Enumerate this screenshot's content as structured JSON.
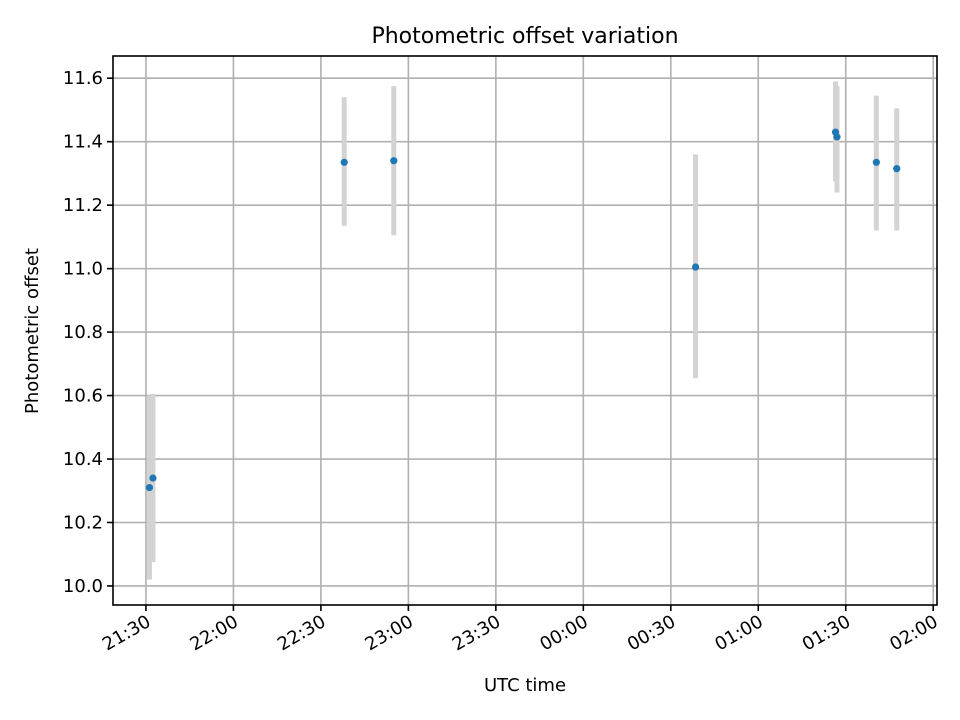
{
  "chart_data": {
    "type": "scatter",
    "title": "Photometric offset variation",
    "xlabel": "UTC time",
    "ylabel": "Photometric offset",
    "x_ticks": [
      {
        "minutes": 0,
        "label": "21:30"
      },
      {
        "minutes": 30,
        "label": "22:00"
      },
      {
        "minutes": 60,
        "label": "22:30"
      },
      {
        "minutes": 90,
        "label": "23:00"
      },
      {
        "minutes": 120,
        "label": "23:30"
      },
      {
        "minutes": 150,
        "label": "00:00"
      },
      {
        "minutes": 180,
        "label": "00:30"
      },
      {
        "minutes": 210,
        "label": "01:00"
      },
      {
        "minutes": 240,
        "label": "01:30"
      },
      {
        "minutes": 270,
        "label": "02:00"
      }
    ],
    "y_ticks": [
      10.0,
      10.2,
      10.4,
      10.6,
      10.8,
      11.0,
      11.2,
      11.4,
      11.6
    ],
    "xlim": [
      -11.3,
      271.3
    ],
    "ylim": [
      9.94,
      11.67
    ],
    "grid": true,
    "error_bar_color": "#d3d3d3",
    "point_color": "#1f77b4",
    "points": [
      {
        "x": 1.2,
        "y": 10.31,
        "err_low": 10.02,
        "err_high": 10.6
      },
      {
        "x": 2.4,
        "y": 10.34,
        "err_low": 10.075,
        "err_high": 10.605
      },
      {
        "x": 68.0,
        "y": 11.335,
        "err_low": 11.135,
        "err_high": 11.54
      },
      {
        "x": 85.0,
        "y": 11.34,
        "err_low": 11.105,
        "err_high": 11.575
      },
      {
        "x": 188.5,
        "y": 11.005,
        "err_low": 10.655,
        "err_high": 11.36
      },
      {
        "x": 236.5,
        "y": 11.43,
        "err_low": 11.275,
        "err_high": 11.59
      },
      {
        "x": 237.0,
        "y": 11.415,
        "err_low": 11.24,
        "err_high": 11.575
      },
      {
        "x": 250.5,
        "y": 11.335,
        "err_low": 11.12,
        "err_high": 11.545
      },
      {
        "x": 257.5,
        "y": 11.315,
        "err_low": 11.12,
        "err_high": 11.505
      }
    ]
  }
}
